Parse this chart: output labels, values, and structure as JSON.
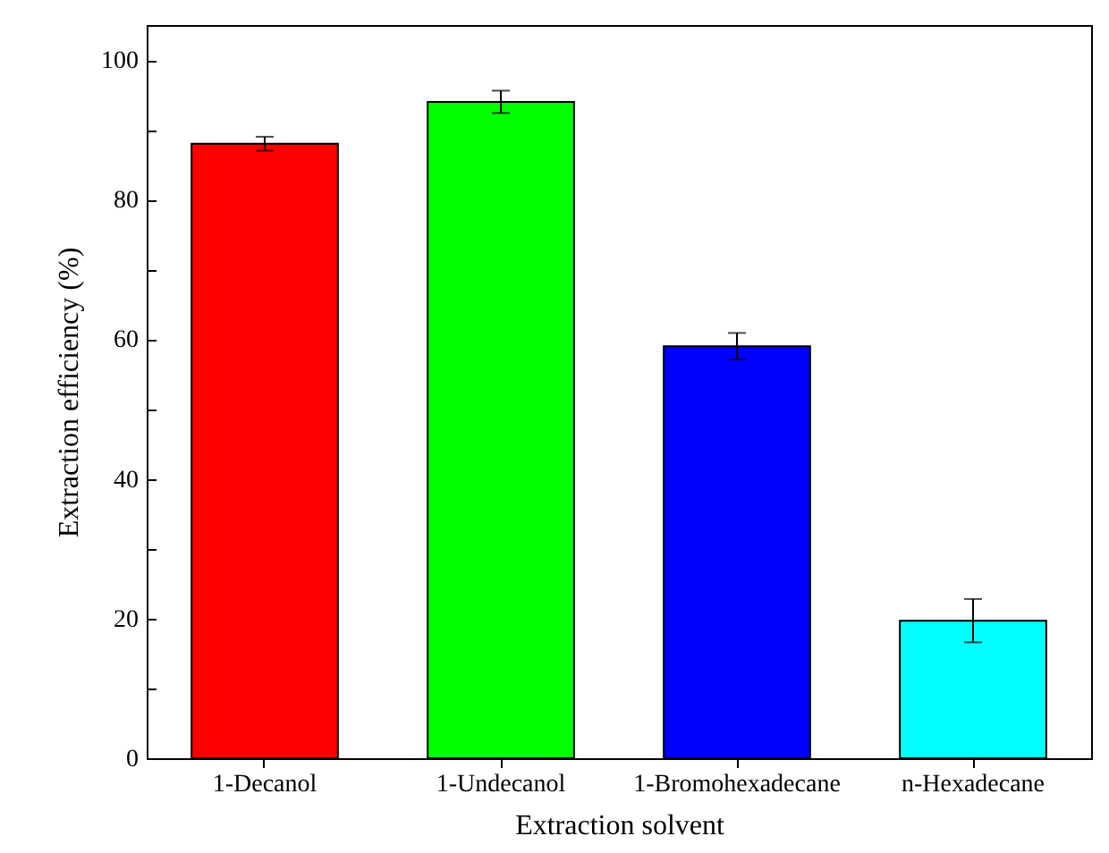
{
  "chart_data": {
    "type": "bar",
    "xlabel": "Extraction solvent",
    "ylabel": "Extraction efficiency (%)",
    "categories": [
      "1-Decanol",
      "1-Undecanol",
      "1-Bromohexadecane",
      "n-Hexadecane"
    ],
    "values": [
      88,
      94,
      59,
      19.7
    ],
    "colors": [
      "#ff0000",
      "#00ff00",
      "#0000ff",
      "#00ffff"
    ],
    "errors": [
      1,
      1.6,
      1.9,
      3.1
    ],
    "ylim": [
      0,
      105
    ],
    "yticks": [
      0,
      {
        "value": 10,
        "label": null
      },
      20,
      {
        "value": 30,
        "label": null
      },
      40,
      {
        "value": 50,
        "label": null
      },
      60,
      {
        "value": 70,
        "label": null
      },
      80,
      {
        "value": 90,
        "label": null
      },
      100
    ],
    "grid": false
  }
}
